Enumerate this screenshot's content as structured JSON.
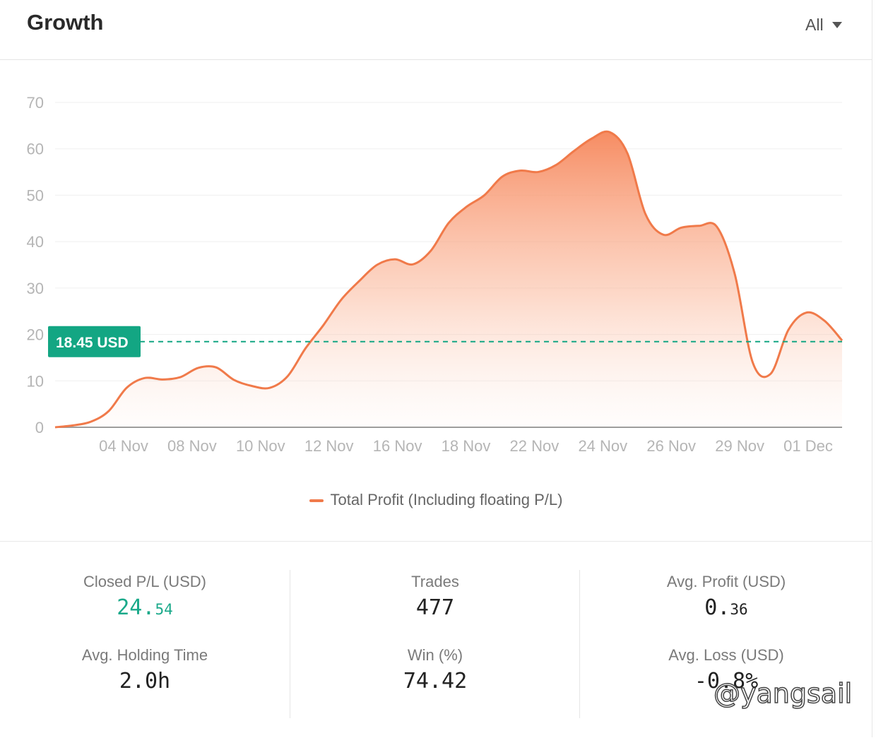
{
  "header": {
    "title": "Growth",
    "range_label": "All"
  },
  "chart_data": {
    "type": "area",
    "title": "Growth",
    "x_tick_labels": [
      "04 Nov",
      "08 Nov",
      "10 Nov",
      "12 Nov",
      "16 Nov",
      "18 Nov",
      "22 Nov",
      "24 Nov",
      "26 Nov",
      "29 Nov",
      "01 Dec"
    ],
    "y_ticks": [
      0,
      10,
      20,
      30,
      40,
      50,
      60,
      70
    ],
    "ylim": [
      0,
      70
    ],
    "grid": true,
    "legend_position": "bottom",
    "series": [
      {
        "name": "Total Profit (Including floating P/L)",
        "color": "#f07a4a",
        "values": [
          0,
          0.4,
          1.2,
          3.5,
          8.5,
          10.6,
          10.3,
          10.8,
          12.8,
          12.9,
          10.2,
          8.9,
          8.5,
          11,
          17,
          22,
          27.5,
          31.5,
          35,
          36.2,
          35.1,
          38,
          44,
          47.5,
          50,
          54,
          55.3,
          55,
          56.5,
          59.5,
          62.2,
          63.6,
          59,
          46,
          41.5,
          43,
          43.4,
          43.2,
          33,
          14,
          11.5,
          21,
          24.7,
          23,
          18.7
        ]
      }
    ],
    "annotations": [
      {
        "type": "reference_line",
        "value": 18.45,
        "label": "18.45 USD",
        "color": "#13a683"
      }
    ]
  },
  "legend": {
    "label": "Total Profit (Including floating P/L)"
  },
  "stats": {
    "closed_pl": {
      "label": "Closed P/L (USD)",
      "value_int": "24.",
      "value_frac": "54"
    },
    "trades": {
      "label": "Trades",
      "value": "477"
    },
    "avg_profit": {
      "label": "Avg. Profit (USD)",
      "value_int": "0.",
      "value_frac": "36"
    },
    "avg_holding": {
      "label": "Avg. Holding Time",
      "value": "2.0h"
    },
    "win": {
      "label": "Win (%)",
      "value": "74.42"
    },
    "avg_loss": {
      "label": "Avg. Loss (USD)",
      "value": "-0.8%"
    }
  },
  "watermark": "@yangsail",
  "colors": {
    "line": "#f07a4a",
    "reference": "#13a683",
    "positive": "#1aa98a"
  }
}
